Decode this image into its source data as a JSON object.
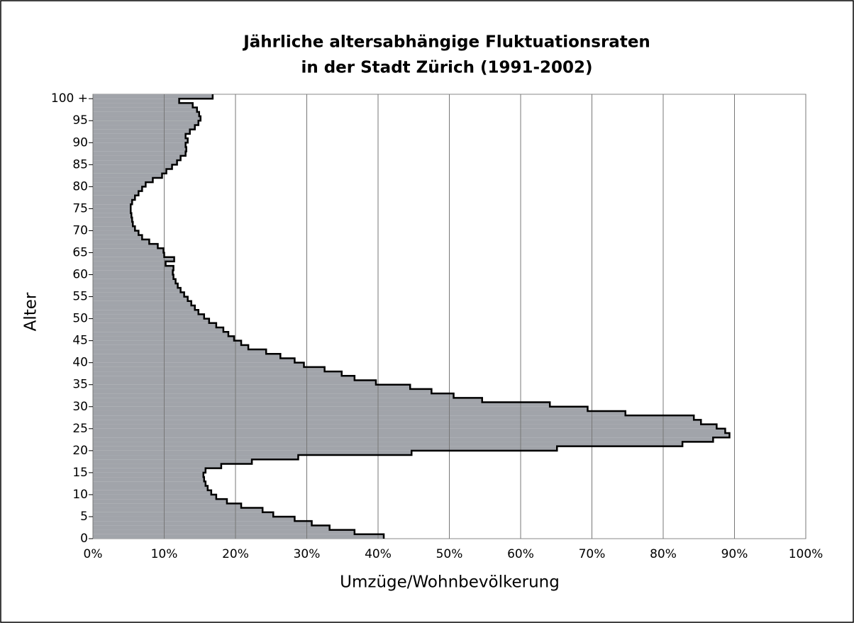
{
  "chart_data": {
    "type": "step-area",
    "orientation": "horizontal",
    "title": [
      "Jährliche altersabhängige Fluktuationsraten",
      "in der Stadt Zürich (1991-2002)"
    ],
    "x_label": "Umzüge/Wohnbevölkerung",
    "y_label": "Alter",
    "color": "#a1a4aa",
    "edge_color": "#000000",
    "grid": true,
    "xlim": [
      0,
      100
    ],
    "xticks": [
      {
        "value": 0,
        "label": "0%"
      },
      {
        "value": 10,
        "label": "10%"
      },
      {
        "value": 20,
        "label": "20%"
      },
      {
        "value": 30,
        "label": "30%"
      },
      {
        "value": 40,
        "label": "40%"
      },
      {
        "value": 50,
        "label": "50%"
      },
      {
        "value": 60,
        "label": "60%"
      },
      {
        "value": 70,
        "label": "70%"
      },
      {
        "value": 80,
        "label": "80%"
      },
      {
        "value": 90,
        "label": "90%"
      },
      {
        "value": 100,
        "label": "100%"
      }
    ],
    "ylim": [
      0,
      101
    ],
    "yticks": [
      0,
      5,
      10,
      15,
      20,
      25,
      30,
      35,
      40,
      45,
      50,
      55,
      60,
      65,
      70,
      75,
      80,
      85,
      90,
      95,
      {
        "value": 100,
        "label": "100 +"
      }
    ],
    "x": [
      0,
      1,
      2,
      3,
      4,
      5,
      6,
      7,
      8,
      9,
      10,
      11,
      12,
      13,
      14,
      15,
      16,
      17,
      18,
      19,
      20,
      21,
      22,
      23,
      24,
      25,
      26,
      27,
      28,
      29,
      30,
      31,
      32,
      33,
      34,
      35,
      36,
      37,
      38,
      39,
      40,
      41,
      42,
      43,
      44,
      45,
      46,
      47,
      48,
      49,
      50,
      51,
      52,
      53,
      54,
      55,
      56,
      57,
      58,
      59,
      60,
      61,
      62,
      63,
      64,
      65,
      66,
      67,
      68,
      69,
      70,
      71,
      72,
      73,
      74,
      75,
      76,
      77,
      78,
      79,
      80,
      81,
      82,
      83,
      84,
      85,
      86,
      87,
      88,
      89,
      90,
      91,
      92,
      93,
      94,
      95,
      96,
      97,
      98,
      99,
      100
    ],
    "values": [
      40.8,
      36.7,
      33.2,
      30.7,
      28.3,
      25.3,
      23.8,
      20.8,
      18.8,
      17.3,
      16.6,
      16.1,
      15.8,
      15.6,
      15.5,
      15.8,
      18.0,
      22.3,
      28.8,
      44.7,
      65.1,
      82.7,
      87.0,
      89.3,
      88.7,
      87.5,
      85.3,
      84.3,
      74.7,
      69.4,
      64.1,
      54.6,
      50.6,
      47.5,
      44.5,
      39.7,
      36.7,
      34.9,
      32.5,
      29.6,
      28.3,
      26.3,
      24.3,
      21.8,
      20.8,
      19.8,
      19.0,
      18.3,
      17.3,
      16.3,
      15.6,
      14.8,
      14.3,
      13.8,
      13.3,
      12.8,
      12.3,
      11.9,
      11.6,
      11.3,
      11.2,
      11.3,
      10.2,
      11.4,
      10.0,
      9.9,
      9.1,
      7.9,
      6.9,
      6.4,
      5.9,
      5.6,
      5.5,
      5.4,
      5.3,
      5.3,
      5.5,
      5.9,
      6.4,
      6.9,
      7.4,
      8.4,
      9.7,
      10.3,
      11.1,
      11.8,
      12.3,
      13.0,
      13.1,
      13.0,
      13.3,
      13.0,
      13.6,
      14.3,
      14.8,
      15.1,
      14.9,
      14.6,
      14.0,
      12.1,
      16.8
    ]
  }
}
